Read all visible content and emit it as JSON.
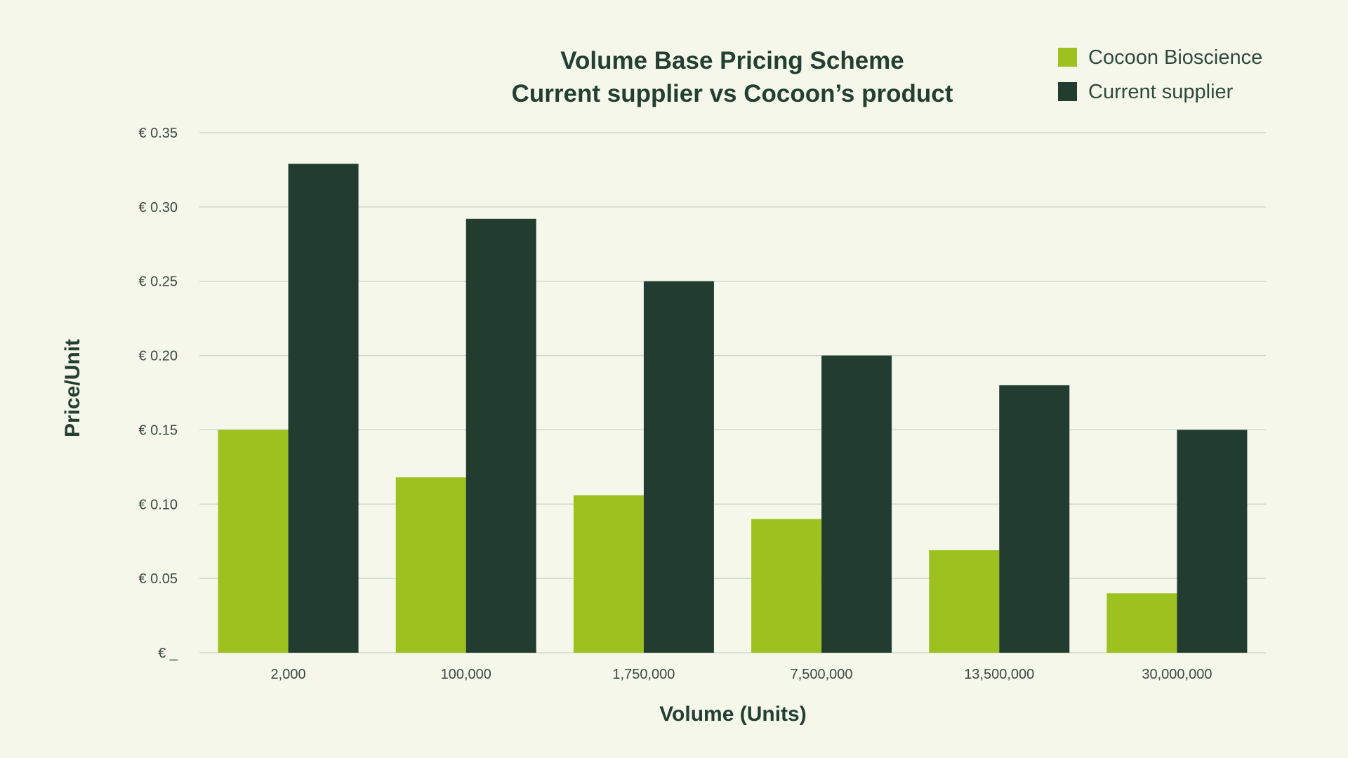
{
  "chart_data": {
    "type": "bar",
    "title": [
      "Volume Base Pricing Scheme",
      "Current supplier vs Cocoon’s product"
    ],
    "xlabel": "Volume (Units)",
    "ylabel": "Price/Unit",
    "categories": [
      "2,000",
      "100,000",
      "1,750,000",
      "7,500,000",
      "13,500,000",
      "30,000,000"
    ],
    "series": [
      {
        "name": "Cocoon Bioscience",
        "color": "#9dc11e",
        "values": [
          0.15,
          0.118,
          0.106,
          0.09,
          0.069,
          0.04
        ]
      },
      {
        "name": "Current supplier",
        "color": "#223d30",
        "values": [
          0.329,
          0.292,
          0.25,
          0.2,
          0.18,
          0.15
        ]
      }
    ],
    "yticks": [
      0,
      0.05,
      0.1,
      0.15,
      0.2,
      0.25,
      0.3,
      0.35
    ],
    "ytick_labels": [
      "€ _",
      "€ 0.05",
      "€ 0.10",
      "€ 0.15",
      "€ 0.20",
      "€ 0.25",
      "€ 0.30",
      "€ 0.35"
    ],
    "ylim": [
      0,
      0.35
    ],
    "grid": true,
    "legend_position": "top-right"
  }
}
